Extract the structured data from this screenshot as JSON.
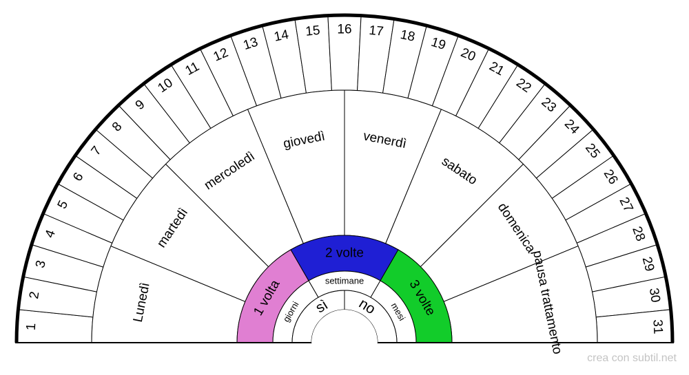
{
  "days": [
    "1",
    "2",
    "3",
    "4",
    "5",
    "6",
    "7",
    "8",
    "9",
    "10",
    "11",
    "12",
    "13",
    "14",
    "15",
    "16",
    "17",
    "18",
    "19",
    "20",
    "21",
    "22",
    "23",
    "24",
    "25",
    "26",
    "27",
    "28",
    "29",
    "30",
    "31"
  ],
  "weekdays": [
    "Lunedì",
    "martedì",
    "mercoledì",
    "giovedì",
    "venerdì",
    "sabato",
    "domenica",
    "pausa trattamento"
  ],
  "frequency": [
    {
      "label": "1 volta",
      "color": "#e07fd2"
    },
    {
      "label": "2 volte",
      "color": "#1f1fd4"
    },
    {
      "label": "3 volte",
      "color": "#12cc2a"
    }
  ],
  "units": [
    "giorni",
    "settimane",
    "mesi"
  ],
  "answers": [
    "sì",
    "no"
  ],
  "watermark": "crea con subtil.net"
}
